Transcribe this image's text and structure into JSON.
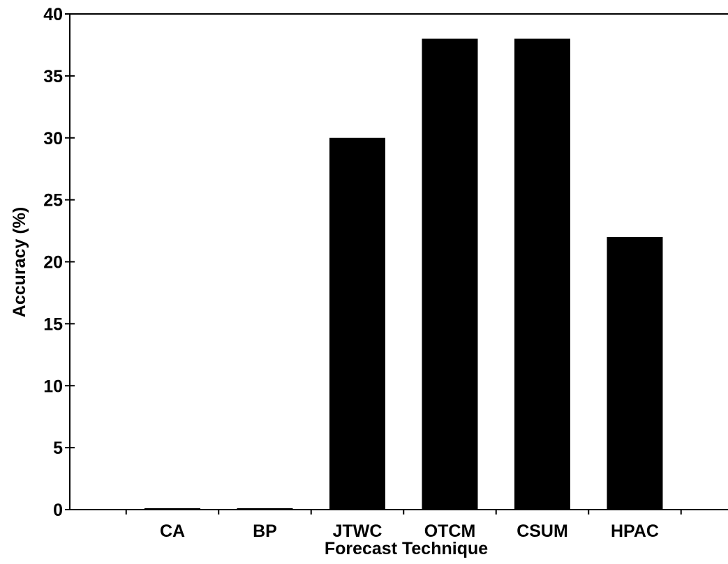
{
  "chart_data": {
    "type": "bar",
    "title": "",
    "xlabel": "Forecast Technique",
    "ylabel": "Accuracy (%)",
    "categories": [
      "CA",
      "BP",
      "JTWC",
      "OTCM",
      "CSUM",
      "HPAC"
    ],
    "values": [
      0,
      0,
      30,
      38,
      38,
      22
    ],
    "ylim": [
      0,
      40
    ],
    "yticks": [
      0,
      5,
      10,
      15,
      20,
      25,
      30,
      35,
      40
    ],
    "grid": false,
    "legend": "none",
    "bar_color": "#000000"
  }
}
